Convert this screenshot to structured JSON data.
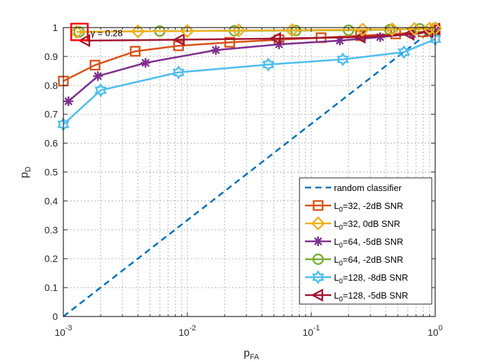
{
  "chart_data": {
    "type": "line",
    "title": "",
    "xlabel": "p",
    "xlabel_sub": "FA",
    "ylabel": "p",
    "ylabel_sub": "D",
    "xscale": "log",
    "xlim": [
      0.001,
      1
    ],
    "ylim": [
      0,
      1
    ],
    "x_tick_labels": [
      {
        "base": "10",
        "exp": "-3"
      },
      {
        "base": "10",
        "exp": "-2"
      },
      {
        "base": "10",
        "exp": "-1"
      },
      {
        "base": "10",
        "exp": "0"
      }
    ],
    "y_tick_labels": [
      "0",
      "0.1",
      "0.2",
      "0.3",
      "0.4",
      "0.5",
      "0.6",
      "0.7",
      "0.8",
      "0.9",
      "1"
    ],
    "grid": true,
    "legend_position": "bottom-right",
    "annotation": {
      "text": "γ = 0.28",
      "x": 0.00135,
      "y": 0.985,
      "color": "#ff0000"
    },
    "series": [
      {
        "name": "random classifier",
        "color": "#0072bd",
        "marker": "none",
        "dash": true,
        "x": [
          0.001,
          1
        ],
        "y": [
          0,
          1
        ]
      },
      {
        "name": "L0=32, -2dB SNR",
        "label_main": "L",
        "label_sub": "0",
        "label_rest": "=32, -2dB SNR",
        "color": "#d95319",
        "marker": "square",
        "x": [
          0.001,
          0.0018,
          0.0038,
          0.0085,
          0.022,
          0.055,
          0.12,
          0.25,
          0.48,
          0.8,
          1.0
        ],
        "y": [
          0.815,
          0.87,
          0.918,
          0.937,
          0.949,
          0.958,
          0.965,
          0.972,
          0.978,
          0.985,
          0.992
        ]
      },
      {
        "name": "L0=32, 0dB SNR",
        "label_main": "L",
        "label_sub": "0",
        "label_rest": "=32, 0dB SNR",
        "color": "#edb120",
        "marker": "diamond",
        "x": [
          0.00128,
          0.004,
          0.01,
          0.026,
          0.07,
          0.26,
          0.45,
          0.68,
          0.9,
          1.0
        ],
        "y": [
          0.985,
          0.987,
          0.988,
          0.99,
          0.991,
          0.993,
          0.994,
          0.995,
          0.996,
          0.997
        ]
      },
      {
        "name": "L0=64, -5dB SNR",
        "label_main": "L",
        "label_sub": "0",
        "label_rest": "=64, -5dB SNR",
        "color": "#7e2f8e",
        "marker": "asterisk",
        "x": [
          0.0011,
          0.0019,
          0.0046,
          0.017,
          0.055,
          0.17,
          0.36,
          0.65,
          1.0
        ],
        "y": [
          0.745,
          0.832,
          0.878,
          0.922,
          0.942,
          0.955,
          0.967,
          0.978,
          0.99
        ]
      },
      {
        "name": "L0=64, -2dB SNR",
        "label_main": "L",
        "label_sub": "0",
        "label_rest": "=64, -2dB SNR",
        "color": "#77ac30",
        "marker": "circle",
        "x": [
          0.00134,
          0.006,
          0.024,
          0.075,
          0.2,
          0.43,
          0.75,
          1.0
        ],
        "y": [
          0.985,
          0.988,
          0.989,
          0.99,
          0.991,
          0.993,
          0.996,
          0.998
        ]
      },
      {
        "name": "L0=128, -8dB SNR",
        "label_main": "L",
        "label_sub": "0",
        "label_rest": "=128, -8dB SNR",
        "color": "#4dbeee",
        "marker": "hexagram",
        "x": [
          0.001,
          0.002,
          0.0085,
          0.045,
          0.18,
          0.56,
          1.0
        ],
        "y": [
          0.665,
          0.783,
          0.845,
          0.872,
          0.89,
          0.915,
          0.96
        ]
      },
      {
        "name": "L0=128, -5dB SNR",
        "label_main": "L",
        "label_sub": "0",
        "label_rest": "=128, -5dB SNR",
        "color": "#a2142f",
        "marker": "triangle-left",
        "x": [
          0.0015,
          0.0087,
          0.052,
          0.25,
          0.62,
          0.88,
          1.0
        ],
        "y": [
          0.955,
          0.958,
          0.962,
          0.967,
          0.977,
          0.985,
          0.995
        ]
      }
    ]
  }
}
